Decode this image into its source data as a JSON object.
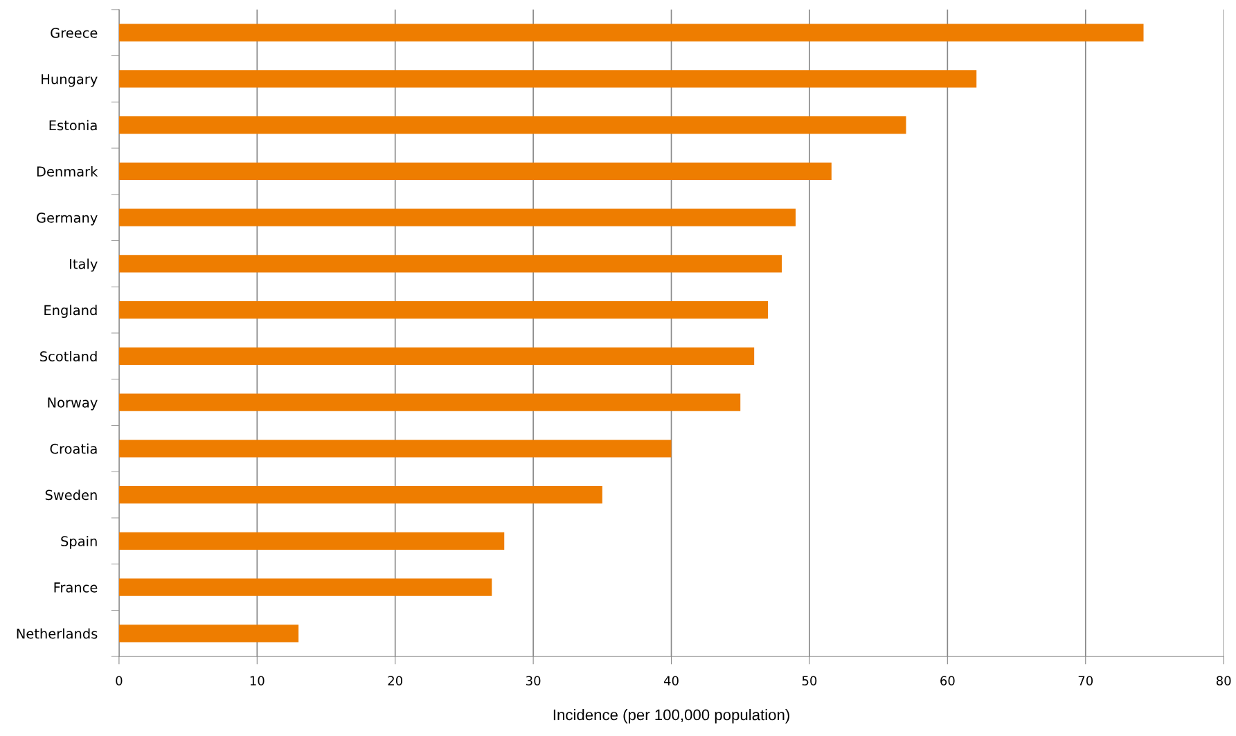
{
  "chart_data": {
    "type": "bar",
    "orientation": "horizontal",
    "xlabel": "Incidence (per 100,000 population)",
    "categories": [
      "Greece",
      "Hungary",
      "Estonia",
      "Denmark",
      "Germany",
      "Italy",
      "England",
      "Scotland",
      "Norway",
      "Croatia",
      "Sweden",
      "Spain",
      "France",
      "Netherlands"
    ],
    "values": [
      74.2,
      62.1,
      57,
      51.6,
      49,
      48,
      47,
      46,
      45,
      40,
      35,
      27.9,
      27,
      13
    ],
    "color": "#ee7d00",
    "xlim": [
      0,
      80
    ],
    "xticks": [
      0,
      10,
      20,
      30,
      40,
      50,
      60,
      70,
      80
    ],
    "grid": "x",
    "legend": false
  }
}
